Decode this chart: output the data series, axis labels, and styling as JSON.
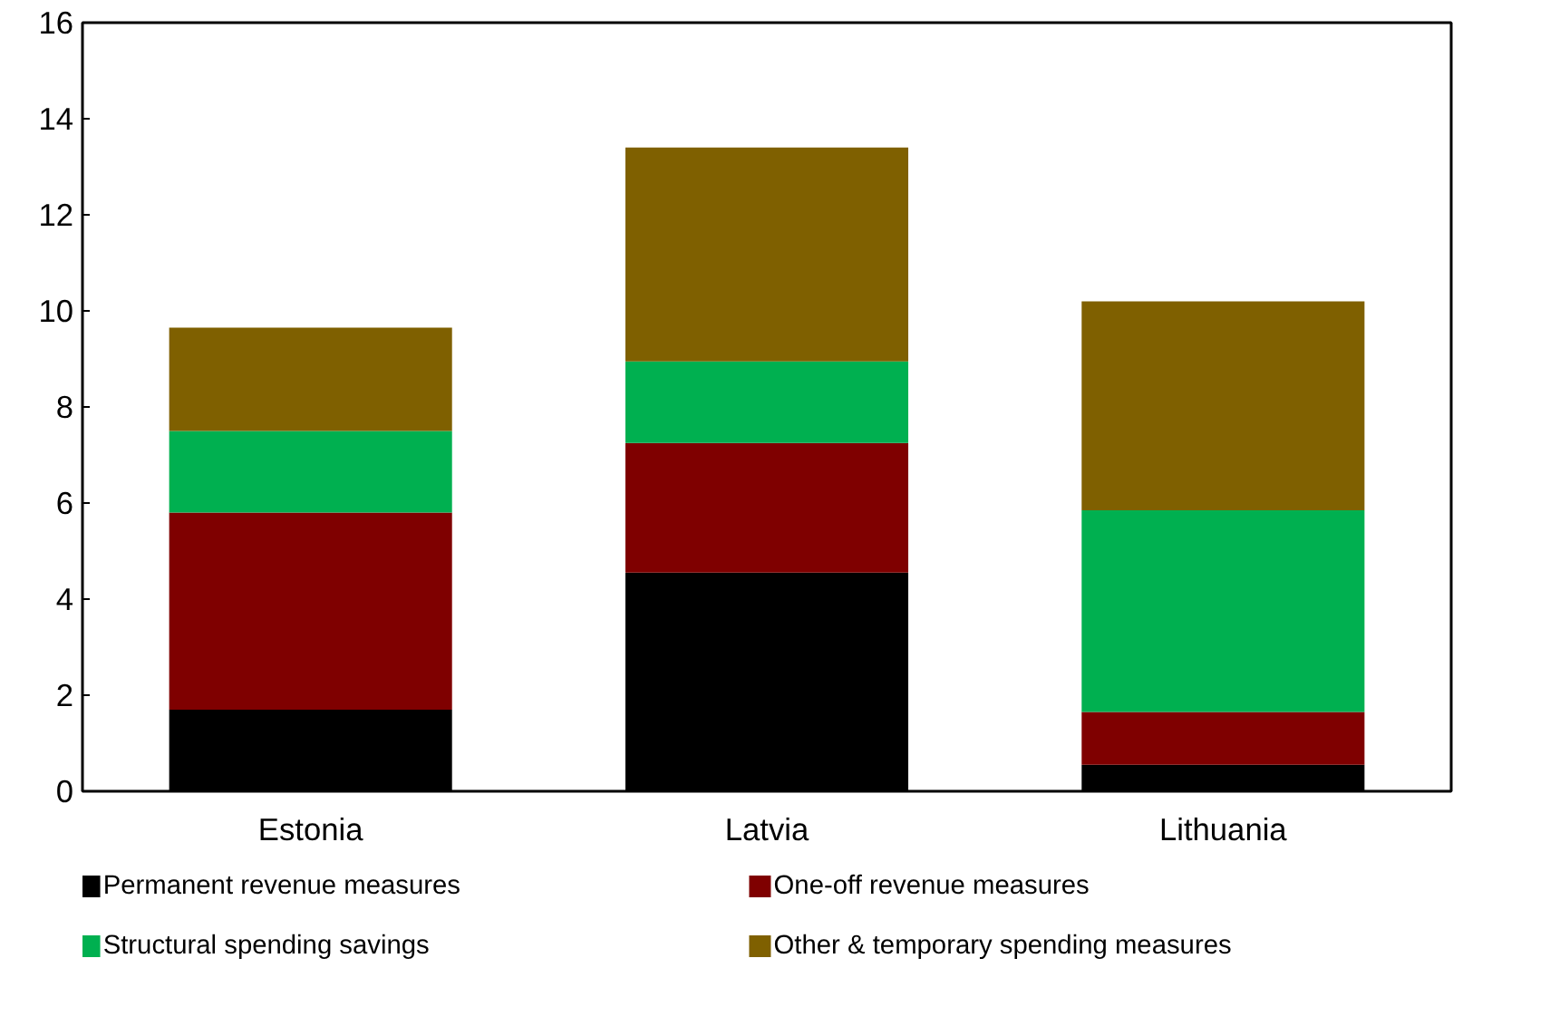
{
  "chart_data": {
    "type": "bar",
    "stacked": true,
    "categories": [
      "Estonia",
      "Latvia",
      "Lithuania"
    ],
    "series": [
      {
        "name": "Permanent revenue measures",
        "color": "#000000",
        "values": [
          1.7,
          4.55,
          0.55
        ]
      },
      {
        "name": "One-off revenue measures",
        "color": "#7f0000",
        "values": [
          4.1,
          2.7,
          1.1
        ]
      },
      {
        "name": "Structural spending savings",
        "color": "#00b050",
        "values": [
          1.7,
          1.7,
          4.2
        ]
      },
      {
        "name": "Other & temporary spending measures",
        "color": "#7f6000",
        "values": [
          2.15,
          4.45,
          4.35
        ]
      }
    ],
    "ylim": [
      0,
      16
    ],
    "yticks": [
      0,
      2,
      4,
      6,
      8,
      10,
      12,
      14,
      16
    ],
    "grid": false,
    "legend": "bottom"
  }
}
